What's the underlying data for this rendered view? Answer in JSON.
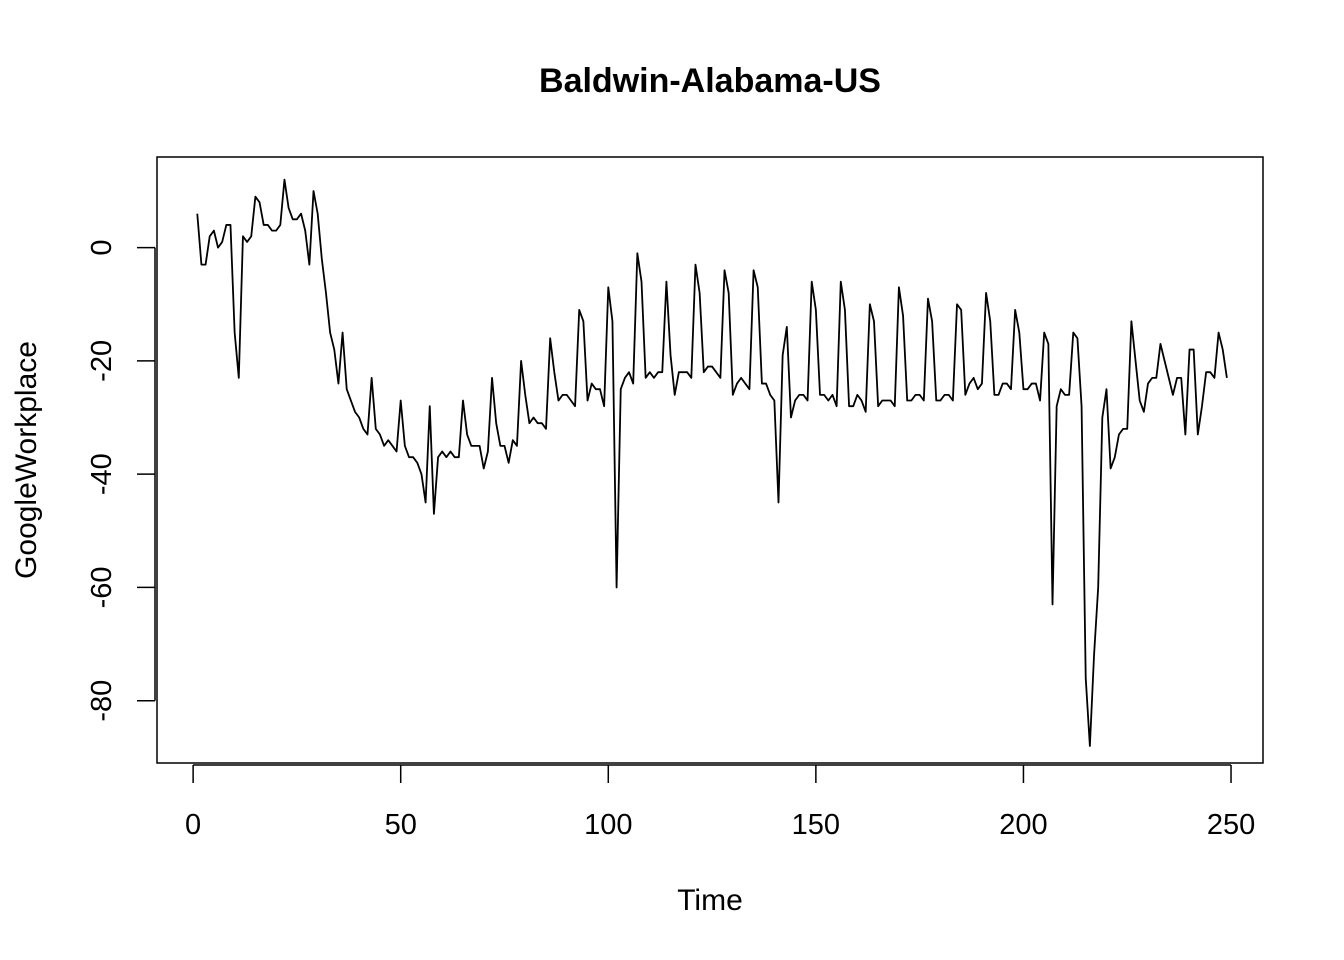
{
  "chart_data": {
    "type": "line",
    "title": "Baldwin-Alabama-US",
    "xlabel": "Time",
    "ylabel": "GoogleWorkplace",
    "xlim": [
      -8.7,
      257.7
    ],
    "ylim": [
      -91,
      16
    ],
    "x_ticks": [
      0,
      50,
      100,
      150,
      200,
      250
    ],
    "y_ticks": [
      0,
      -20,
      -40,
      -60,
      -80
    ],
    "grid": false,
    "legend": "none",
    "line_color": "#000000",
    "series": [
      {
        "x_start": 1,
        "values": [
          6,
          -3,
          -3,
          2,
          3,
          0,
          1,
          4,
          4,
          -15,
          -23,
          2,
          1,
          2,
          9,
          8,
          4,
          4,
          3,
          3,
          4,
          12,
          7,
          5,
          5,
          6,
          3,
          -3,
          10,
          6,
          -2,
          -8,
          -15,
          -18,
          -24,
          -15,
          -25,
          -27,
          -29,
          -30,
          -32,
          -33,
          -23,
          -32,
          -33,
          -35,
          -34,
          -35,
          -36,
          -27,
          -35,
          -37,
          -37,
          -38,
          -40,
          -45,
          -28,
          -47,
          -37,
          -36,
          -37,
          -36,
          -37,
          -37,
          -27,
          -33,
          -35,
          -35,
          -35,
          -39,
          -36,
          -23,
          -31,
          -35,
          -35,
          -38,
          -34,
          -35,
          -20,
          -26,
          -31,
          -30,
          -31,
          -31,
          -32,
          -16,
          -22,
          -27,
          -26,
          -26,
          -27,
          -28,
          -11,
          -13,
          -27,
          -24,
          -25,
          -25,
          -28,
          -7,
          -13,
          -60,
          -25,
          -23,
          -22,
          -24,
          -1,
          -6,
          -23,
          -22,
          -23,
          -22,
          -22,
          -6,
          -19,
          -26,
          -22,
          -22,
          -22,
          -23,
          -3,
          -8,
          -22,
          -21,
          -21,
          -22,
          -23,
          -4,
          -8,
          -26,
          -24,
          -23,
          -24,
          -25,
          -4,
          -7,
          -24,
          -24,
          -26,
          -27,
          -45,
          -19,
          -14,
          -30,
          -27,
          -26,
          -26,
          -27,
          -6,
          -11,
          -26,
          -26,
          -27,
          -26,
          -28,
          -6,
          -11,
          -28,
          -28,
          -26,
          -27,
          -29,
          -10,
          -13,
          -28,
          -27,
          -27,
          -27,
          -28,
          -7,
          -12,
          -27,
          -27,
          -26,
          -26,
          -27,
          -9,
          -13,
          -27,
          -27,
          -26,
          -26,
          -27,
          -10,
          -11,
          -26,
          -24,
          -23,
          -25,
          -24,
          -8,
          -13,
          -26,
          -26,
          -24,
          -24,
          -25,
          -11,
          -15,
          -25,
          -25,
          -24,
          -24,
          -27,
          -15,
          -17,
          -63,
          -28,
          -25,
          -26,
          -26,
          -15,
          -16,
          -28,
          -76,
          -88,
          -72,
          -60,
          -30,
          -25,
          -39,
          -37,
          -33,
          -32,
          -32,
          -13,
          -20,
          -27,
          -29,
          -24,
          -23,
          -23,
          -17,
          -20,
          -23,
          -26,
          -23,
          -23,
          -33,
          -18,
          -18,
          -33,
          -28,
          -22,
          -22,
          -23,
          -15,
          -18,
          -23
        ]
      }
    ]
  }
}
